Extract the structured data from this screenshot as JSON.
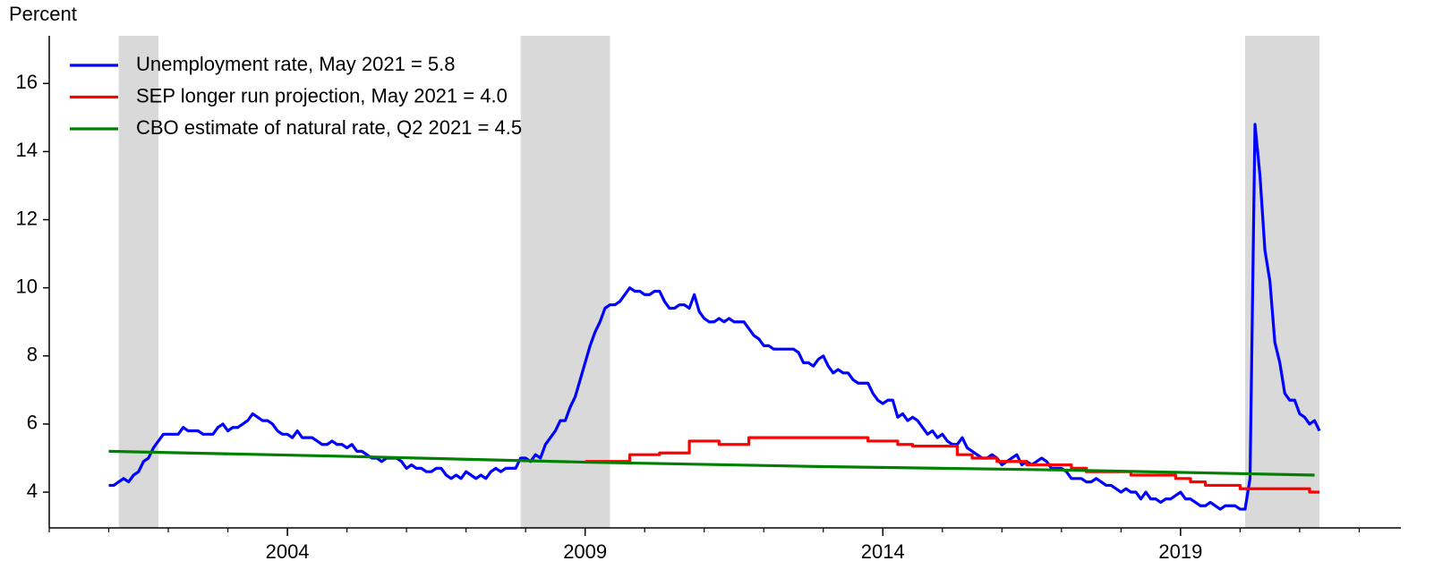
{
  "chart_data": {
    "type": "line",
    "ylabel": "Percent",
    "xlim": [
      2000,
      2022.7
    ],
    "xticks": [
      2004,
      2009,
      2014,
      2019
    ],
    "xminorticks": [
      2000,
      2001,
      2002,
      2003,
      2004,
      2005,
      2006,
      2007,
      2008,
      2009,
      2010,
      2011,
      2012,
      2013,
      2014,
      2015,
      2016,
      2017,
      2018,
      2019,
      2020,
      2021,
      2022
    ],
    "ylim": [
      2.95,
      17.4
    ],
    "yticks": [
      4,
      6,
      8,
      10,
      12,
      14,
      16
    ],
    "legend": "upper left",
    "shading_color": "#d9d9d9",
    "shading": [
      [
        "2001-03",
        "2001-11"
      ],
      [
        "2007-12",
        "2009-06"
      ],
      [
        "2020-02",
        "2021-05"
      ]
    ],
    "series": [
      {
        "name": "Unemployment rate, May 2021 = 5.8",
        "color": "#0000ff",
        "x": [
          "2001-01",
          "2001-02",
          "2001-03",
          "2001-04",
          "2001-05",
          "2001-06",
          "2001-07",
          "2001-08",
          "2001-09",
          "2001-10",
          "2001-11",
          "2001-12",
          "2002-01",
          "2002-02",
          "2002-03",
          "2002-04",
          "2002-05",
          "2002-06",
          "2002-07",
          "2002-08",
          "2002-09",
          "2002-10",
          "2002-11",
          "2002-12",
          "2003-01",
          "2003-02",
          "2003-03",
          "2003-04",
          "2003-05",
          "2003-06",
          "2003-07",
          "2003-08",
          "2003-09",
          "2003-10",
          "2003-11",
          "2003-12",
          "2004-01",
          "2004-02",
          "2004-03",
          "2004-04",
          "2004-05",
          "2004-06",
          "2004-07",
          "2004-08",
          "2004-09",
          "2004-10",
          "2004-11",
          "2004-12",
          "2005-01",
          "2005-02",
          "2005-03",
          "2005-04",
          "2005-05",
          "2005-06",
          "2005-07",
          "2005-08",
          "2005-09",
          "2005-10",
          "2005-11",
          "2005-12",
          "2006-01",
          "2006-02",
          "2006-03",
          "2006-04",
          "2006-05",
          "2006-06",
          "2006-07",
          "2006-08",
          "2006-09",
          "2006-10",
          "2006-11",
          "2006-12",
          "2007-01",
          "2007-02",
          "2007-03",
          "2007-04",
          "2007-05",
          "2007-06",
          "2007-07",
          "2007-08",
          "2007-09",
          "2007-10",
          "2007-11",
          "2007-12",
          "2008-01",
          "2008-02",
          "2008-03",
          "2008-04",
          "2008-05",
          "2008-06",
          "2008-07",
          "2008-08",
          "2008-09",
          "2008-10",
          "2008-11",
          "2008-12",
          "2009-01",
          "2009-02",
          "2009-03",
          "2009-04",
          "2009-05",
          "2009-06",
          "2009-07",
          "2009-08",
          "2009-09",
          "2009-10",
          "2009-11",
          "2009-12",
          "2010-01",
          "2010-02",
          "2010-03",
          "2010-04",
          "2010-05",
          "2010-06",
          "2010-07",
          "2010-08",
          "2010-09",
          "2010-10",
          "2010-11",
          "2010-12",
          "2011-01",
          "2011-02",
          "2011-03",
          "2011-04",
          "2011-05",
          "2011-06",
          "2011-07",
          "2011-08",
          "2011-09",
          "2011-10",
          "2011-11",
          "2011-12",
          "2012-01",
          "2012-02",
          "2012-03",
          "2012-04",
          "2012-05",
          "2012-06",
          "2012-07",
          "2012-08",
          "2012-09",
          "2012-10",
          "2012-11",
          "2012-12",
          "2013-01",
          "2013-02",
          "2013-03",
          "2013-04",
          "2013-05",
          "2013-06",
          "2013-07",
          "2013-08",
          "2013-09",
          "2013-10",
          "2013-11",
          "2013-12",
          "2014-01",
          "2014-02",
          "2014-03",
          "2014-04",
          "2014-05",
          "2014-06",
          "2014-07",
          "2014-08",
          "2014-09",
          "2014-10",
          "2014-11",
          "2014-12",
          "2015-01",
          "2015-02",
          "2015-03",
          "2015-04",
          "2015-05",
          "2015-06",
          "2015-07",
          "2015-08",
          "2015-09",
          "2015-10",
          "2015-11",
          "2015-12",
          "2016-01",
          "2016-02",
          "2016-03",
          "2016-04",
          "2016-05",
          "2016-06",
          "2016-07",
          "2016-08",
          "2016-09",
          "2016-10",
          "2016-11",
          "2016-12",
          "2017-01",
          "2017-02",
          "2017-03",
          "2017-04",
          "2017-05",
          "2017-06",
          "2017-07",
          "2017-08",
          "2017-09",
          "2017-10",
          "2017-11",
          "2017-12",
          "2018-01",
          "2018-02",
          "2018-03",
          "2018-04",
          "2018-05",
          "2018-06",
          "2018-07",
          "2018-08",
          "2018-09",
          "2018-10",
          "2018-11",
          "2018-12",
          "2019-01",
          "2019-02",
          "2019-03",
          "2019-04",
          "2019-05",
          "2019-06",
          "2019-07",
          "2019-08",
          "2019-09",
          "2019-10",
          "2019-11",
          "2019-12",
          "2020-01",
          "2020-02",
          "2020-03",
          "2020-04",
          "2020-05",
          "2020-06",
          "2020-07",
          "2020-08",
          "2020-09",
          "2020-10",
          "2020-11",
          "2020-12",
          "2021-01",
          "2021-02",
          "2021-03",
          "2021-04",
          "2021-05"
        ],
        "values": [
          4.2,
          4.2,
          4.3,
          4.4,
          4.3,
          4.5,
          4.6,
          4.9,
          5.0,
          5.3,
          5.5,
          5.7,
          5.7,
          5.7,
          5.7,
          5.9,
          5.8,
          5.8,
          5.8,
          5.7,
          5.7,
          5.7,
          5.9,
          6.0,
          5.8,
          5.9,
          5.9,
          6.0,
          6.1,
          6.3,
          6.2,
          6.1,
          6.1,
          6.0,
          5.8,
          5.7,
          5.7,
          5.6,
          5.8,
          5.6,
          5.6,
          5.6,
          5.5,
          5.4,
          5.4,
          5.5,
          5.4,
          5.4,
          5.3,
          5.4,
          5.2,
          5.2,
          5.1,
          5.0,
          5.0,
          4.9,
          5.0,
          5.0,
          5.0,
          4.9,
          4.7,
          4.8,
          4.7,
          4.7,
          4.6,
          4.6,
          4.7,
          4.7,
          4.5,
          4.4,
          4.5,
          4.4,
          4.6,
          4.5,
          4.4,
          4.5,
          4.4,
          4.6,
          4.7,
          4.6,
          4.7,
          4.7,
          4.7,
          5.0,
          5.0,
          4.9,
          5.1,
          5.0,
          5.4,
          5.6,
          5.8,
          6.1,
          6.1,
          6.5,
          6.8,
          7.3,
          7.8,
          8.3,
          8.7,
          9.0,
          9.4,
          9.5,
          9.5,
          9.6,
          9.8,
          10.0,
          9.9,
          9.9,
          9.8,
          9.8,
          9.9,
          9.9,
          9.6,
          9.4,
          9.4,
          9.5,
          9.5,
          9.4,
          9.8,
          9.3,
          9.1,
          9.0,
          9.0,
          9.1,
          9.0,
          9.1,
          9.0,
          9.0,
          9.0,
          8.8,
          8.6,
          8.5,
          8.3,
          8.3,
          8.2,
          8.2,
          8.2,
          8.2,
          8.2,
          8.1,
          7.8,
          7.8,
          7.7,
          7.9,
          8.0,
          7.7,
          7.5,
          7.6,
          7.5,
          7.5,
          7.3,
          7.2,
          7.2,
          7.2,
          6.9,
          6.7,
          6.6,
          6.7,
          6.7,
          6.2,
          6.3,
          6.1,
          6.2,
          6.1,
          5.9,
          5.7,
          5.8,
          5.6,
          5.7,
          5.5,
          5.4,
          5.4,
          5.6,
          5.3,
          5.2,
          5.1,
          5.0,
          5.0,
          5.1,
          5.0,
          4.8,
          4.9,
          5.0,
          5.1,
          4.8,
          4.9,
          4.8,
          4.9,
          5.0,
          4.9,
          4.7,
          4.7,
          4.7,
          4.6,
          4.4,
          4.4,
          4.4,
          4.3,
          4.3,
          4.4,
          4.3,
          4.2,
          4.2,
          4.1,
          4.0,
          4.1,
          4.0,
          4.0,
          3.8,
          4.0,
          3.8,
          3.8,
          3.7,
          3.8,
          3.8,
          3.9,
          4.0,
          3.8,
          3.8,
          3.7,
          3.6,
          3.6,
          3.7,
          3.6,
          3.5,
          3.6,
          3.6,
          3.6,
          3.5,
          3.5,
          4.4,
          14.8,
          13.3,
          11.1,
          10.2,
          8.4,
          7.8,
          6.9,
          6.7,
          6.7,
          6.3,
          6.2,
          6.0,
          6.1,
          5.8
        ]
      },
      {
        "name": "SEP longer run projection, May 2021 = 4.0",
        "color": "#ff0000",
        "drawstyle": "steps-post",
        "x": [
          "2009-01",
          "2009-10",
          "2010-04",
          "2010-10",
          "2011-04",
          "2011-10",
          "2013-10",
          "2014-04",
          "2014-07",
          "2015-04",
          "2015-07",
          "2015-12",
          "2016-06",
          "2017-03",
          "2017-06",
          "2018-03",
          "2018-12",
          "2019-03",
          "2019-06",
          "2020-01",
          "2021-03",
          "2021-05"
        ],
        "values": [
          4.9,
          5.1,
          5.15,
          5.5,
          5.4,
          5.6,
          5.5,
          5.4,
          5.35,
          5.1,
          5.0,
          4.9,
          4.8,
          4.7,
          4.6,
          4.5,
          4.4,
          4.3,
          4.2,
          4.1,
          4.0,
          4.0
        ]
      },
      {
        "name": "CBO estimate of natural rate, Q2 2021 = 4.5",
        "color": "#008000",
        "x": [
          "2001-01",
          "2005-01",
          "2009-01",
          "2013-01",
          "2017-01",
          "2021-04"
        ],
        "values": [
          5.2,
          5.05,
          4.88,
          4.75,
          4.65,
          4.5
        ]
      }
    ]
  }
}
